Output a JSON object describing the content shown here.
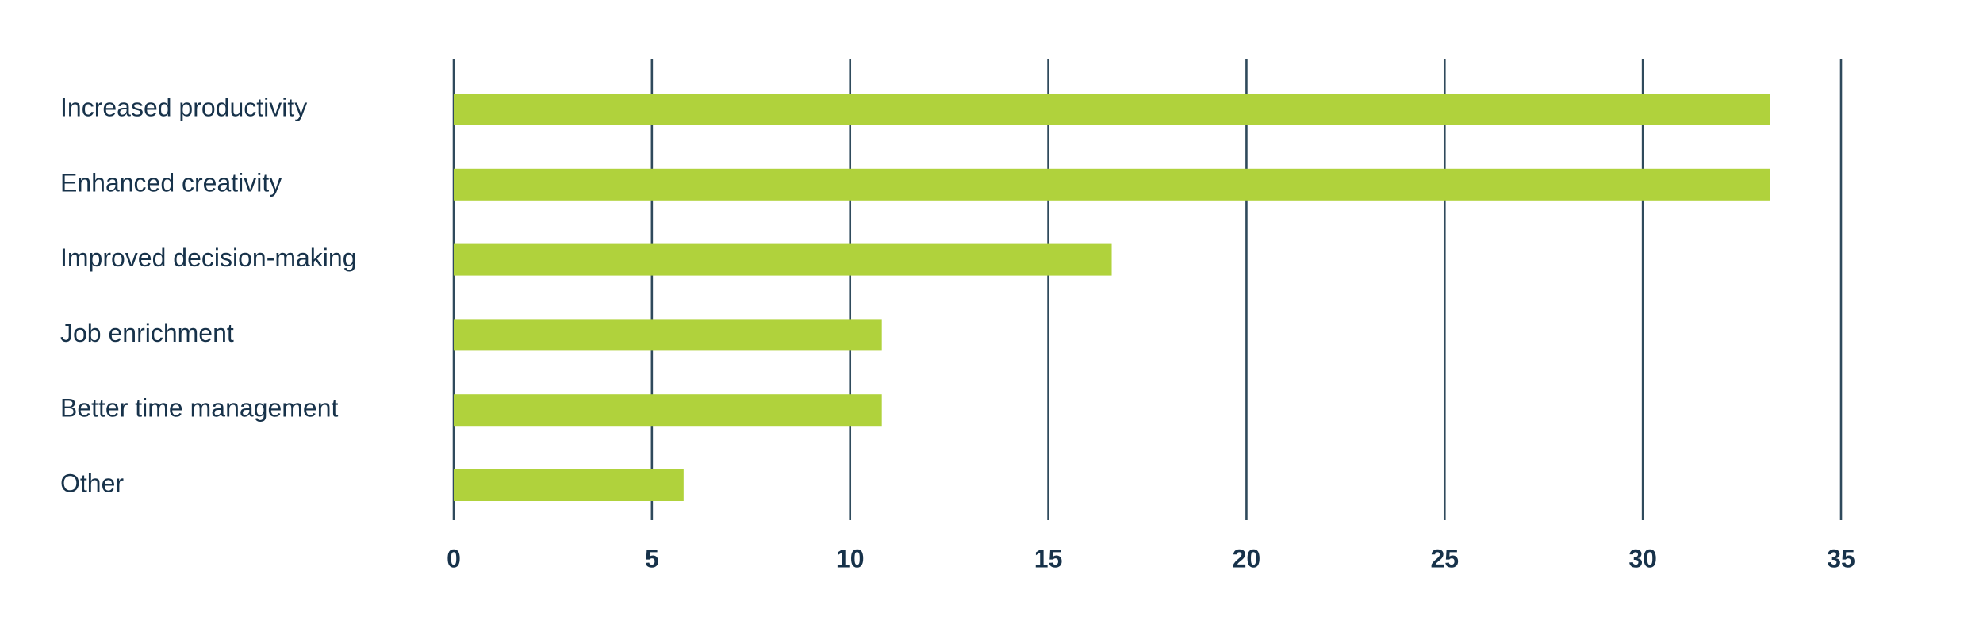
{
  "chart_data": {
    "type": "bar",
    "orientation": "horizontal",
    "categories": [
      "Increased productivity",
      "Enhanced creativity",
      "Improved decision-making",
      "Job enrichment",
      "Better time management",
      "Other"
    ],
    "values": [
      33.2,
      33.2,
      16.6,
      10.8,
      10.8,
      5.8
    ],
    "xlim": [
      0,
      35
    ],
    "x_ticks": [
      "0",
      "5",
      "10",
      "15",
      "20",
      "25",
      "30",
      "35"
    ],
    "title": "",
    "xlabel": "",
    "ylabel": "",
    "grid": "vertical",
    "legend": "none",
    "colors": {
      "bar": "#b0d23c",
      "grid": "#2f4a5c",
      "text": "#17324a"
    }
  }
}
